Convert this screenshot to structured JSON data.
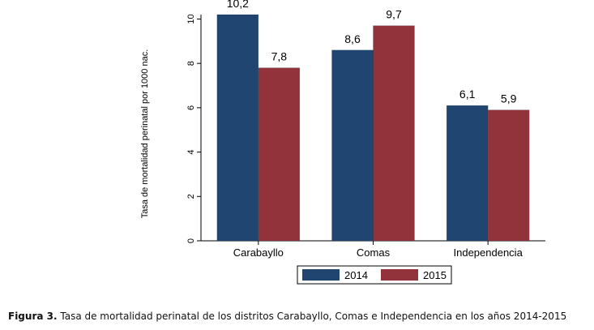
{
  "chart_data": {
    "type": "bar",
    "categories": [
      "Carabayllo",
      "Comas",
      "Independencia"
    ],
    "series": [
      {
        "name": "2014",
        "values": [
          10.2,
          8.6,
          6.1
        ],
        "labels": [
          "10,2",
          "8,6",
          "6,1"
        ],
        "color": "#1f4570"
      },
      {
        "name": "2015",
        "values": [
          7.8,
          9.7,
          5.9
        ],
        "labels": [
          "7,8",
          "9,7",
          "5,9"
        ],
        "color": "#92333b"
      }
    ],
    "ylabel": "Tasa de mortalidad perinatal por 1000 nac.",
    "xlabel": "",
    "ylim": [
      0,
      10.2
    ],
    "yticks": [
      0,
      2,
      4,
      6,
      8,
      10
    ],
    "grid": false,
    "legend_position": "bottom"
  },
  "caption": {
    "prefix": "Figura 3.",
    "text": "Tasa de mortalidad perinatal de los distritos Carabayllo, Comas e Independencia en los años 2014-2015"
  }
}
